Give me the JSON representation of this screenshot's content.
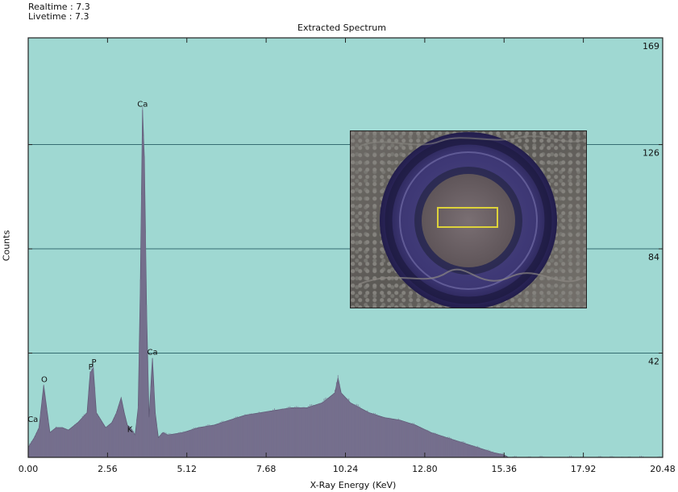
{
  "header": {
    "realtime": "Realtime : 7.3",
    "livetime": "Livetime : 7.3",
    "title": "Extracted Spectrum"
  },
  "chart_data": {
    "type": "area",
    "title": "Extracted Spectrum",
    "xlabel": "X-Ray Energy (KeV)",
    "ylabel": "Counts",
    "xlim": [
      0,
      20.48
    ],
    "ylim": [
      0,
      169
    ],
    "grid": true,
    "xticks": [
      "0.00",
      "2.56",
      "5.12",
      "7.68",
      "10.24",
      "12.80",
      "15.36",
      "17.92",
      "20.48"
    ],
    "yticks": [
      "42",
      "84",
      "126",
      "169"
    ],
    "series": [
      {
        "x": [
          0,
          0.2,
          0.35,
          0.5,
          0.7,
          0.9,
          1.1,
          1.3,
          1.6,
          1.9,
          2.0,
          2.1,
          2.2,
          2.35,
          2.5,
          2.7,
          2.85,
          3.0,
          3.1,
          3.2,
          3.3,
          3.45,
          3.55,
          3.62,
          3.69,
          3.75,
          3.82,
          3.9,
          4.01,
          4.1,
          4.2,
          4.35,
          4.5,
          5.0,
          5.5,
          6.0,
          6.5,
          7.0,
          7.5,
          8.0,
          8.5,
          9.0,
          9.5,
          9.9,
          10.0,
          10.1,
          10.4,
          11.0,
          11.5,
          12.0,
          12.5,
          13.0,
          13.5,
          14.0,
          14.5,
          15.0,
          15.36,
          15.5,
          16.0,
          17.0,
          18.0,
          19.0,
          20.48
        ],
        "y": [
          4,
          8,
          12,
          29,
          10,
          12,
          12,
          11,
          14,
          18,
          34,
          36,
          18,
          15,
          12,
          14,
          18,
          24,
          18,
          13,
          12,
          9,
          20,
          70,
          140,
          120,
          60,
          16,
          40,
          18,
          8,
          10,
          9,
          10,
          12,
          13,
          15,
          17,
          18,
          19,
          20,
          20,
          22,
          26,
          32,
          26,
          22,
          18,
          16,
          15,
          13,
          10,
          8,
          6,
          4,
          2,
          1,
          0,
          0,
          0,
          0,
          0,
          0
        ]
      }
    ],
    "peak_labels": [
      {
        "text": "Ca",
        "x": 0.15,
        "y": 13
      },
      {
        "text": "O",
        "x": 0.52,
        "y": 29
      },
      {
        "text": "P",
        "x": 2.02,
        "y": 34
      },
      {
        "text": "P",
        "x": 2.12,
        "y": 36
      },
      {
        "text": "K",
        "x": 3.28,
        "y": 9
      },
      {
        "text": "Ca",
        "x": 3.69,
        "y": 140
      },
      {
        "text": "Ca",
        "x": 4.01,
        "y": 40
      }
    ],
    "colors": {
      "background": "#9fd8d2",
      "fill": "#756f8d",
      "stroke": "#5d5874",
      "grid": "#356d72",
      "axis": "#222222"
    }
  },
  "inset_image": {
    "ring_color": "#3d3774",
    "inner_color": "#6d6265",
    "selection_color": "#ddd23a"
  }
}
